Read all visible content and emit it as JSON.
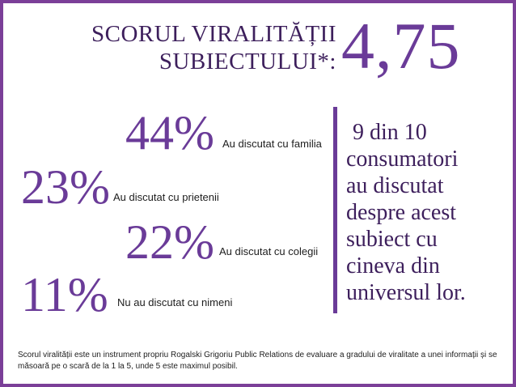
{
  "header": {
    "title_line1": "SCORUL VIRALITĂȚII",
    "title_line2": "SUBIECTULUI*:",
    "score": "4,75"
  },
  "stats": [
    {
      "value": "44%",
      "label": "Au discutat cu familia"
    },
    {
      "value": "23%",
      "label": "Au discutat cu prietenii"
    },
    {
      "value": "22%",
      "label": "Au discutat cu colegii"
    },
    {
      "value": "11%",
      "label": "Nu au discutat cu nimeni"
    }
  ],
  "side_text": {
    "line1": "9 din 10",
    "line2": "consumatori",
    "line3": "au discutat",
    "line4": "despre acest",
    "line5": "subiect cu",
    "line6": "cineva din",
    "line7": "universul lor."
  },
  "footnote": "Scorul viralității este un instrument propriu Rogalski Grigoriu Public Relations de evaluare a gradului de viralitate a unei informații și se măsoară pe o scară de la 1 la 5, unde 5 este maximul posibil.",
  "colors": {
    "accent": "#6a3b98",
    "border": "#7b3f98",
    "title": "#3d1f5c"
  }
}
